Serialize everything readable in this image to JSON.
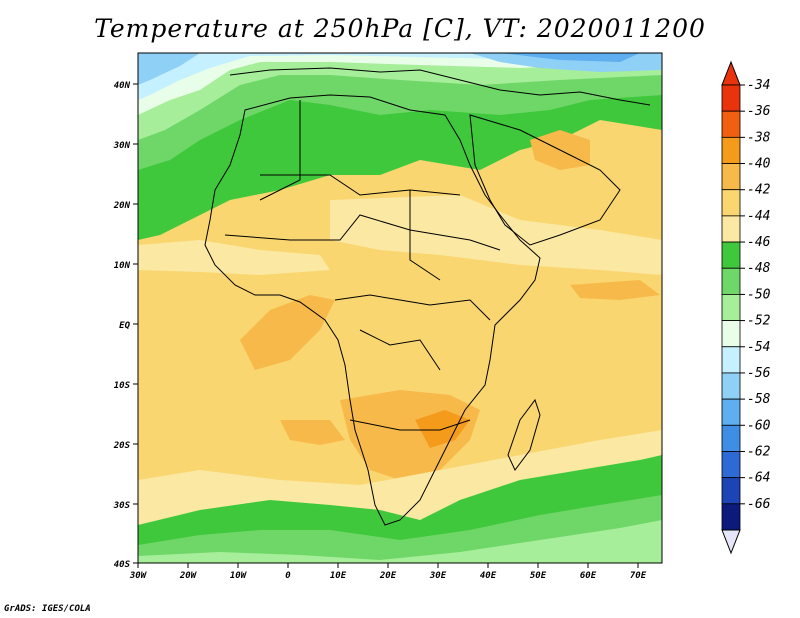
{
  "title": "Temperature at 250hPa [C], VT: 2020011200",
  "credit": "GrADS: IGES/COLA",
  "map": {
    "lon_range": [
      -30,
      75
    ],
    "lat_range": [
      -40,
      45
    ],
    "lon_ticks": [
      "30W",
      "20W",
      "10W",
      "0",
      "10E",
      "20E",
      "30E",
      "40E",
      "50E",
      "60E",
      "70E"
    ],
    "lat_ticks": [
      "40N",
      "30N",
      "20N",
      "10N",
      "EQ",
      "10S",
      "20S",
      "30S",
      "40S"
    ],
    "field": "Temperature at 250hPa",
    "units": "C",
    "valid_time": "2020011200"
  },
  "colorbar": {
    "labels": [
      "-34",
      "-36",
      "-38",
      "-40",
      "-42",
      "-44",
      "-46",
      "-48",
      "-50",
      "-52",
      "-54",
      "-56",
      "-58",
      "-60",
      "-62",
      "-64",
      "-66"
    ],
    "colors": [
      "#e8330c",
      "#f06010",
      "#f59b1c",
      "#f7b94a",
      "#f9d670",
      "#fbe8a3",
      "#3fc83c",
      "#6ed767",
      "#a6ee9a",
      "#e8fee8",
      "#c4f0ff",
      "#8fd0f6",
      "#5eaef0",
      "#3e8ee6",
      "#2d6ad6",
      "#1d44b5",
      "#0c1a7e"
    ]
  }
}
